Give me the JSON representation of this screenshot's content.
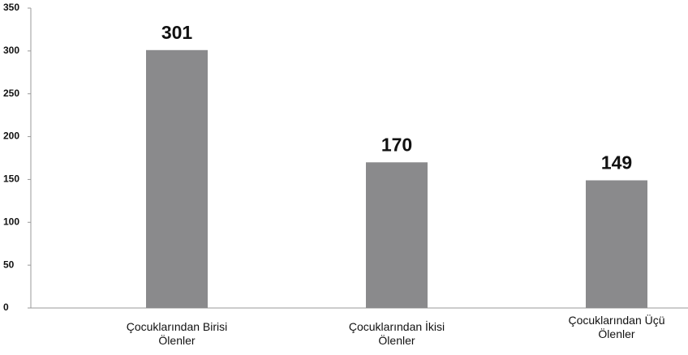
{
  "chart_data": {
    "type": "bar",
    "categories": [
      "Çocuklarından Birisi Ölenler",
      "Çocuklarından İkisi Ölenler",
      "Çocuklarından Üçü Ölenler"
    ],
    "values": [
      301,
      170,
      149
    ],
    "color": "#8a8a8c",
    "ylim": [
      0,
      350
    ],
    "yticks": [
      0,
      50,
      100,
      150,
      200,
      250,
      300,
      350
    ],
    "grid": false
  }
}
